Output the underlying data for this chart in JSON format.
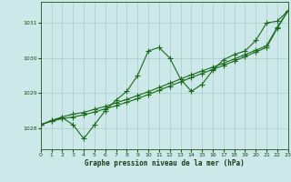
{
  "xlabel": "Graphe pression niveau de la mer (hPa)",
  "bg_color": "#cce8e8",
  "line_color": "#1a6b1a",
  "grid_color": "#aacccc",
  "xlim": [
    0,
    23
  ],
  "ylim": [
    1027.4,
    1031.6
  ],
  "yticks": [
    1028,
    1029,
    1030,
    1031
  ],
  "xticks": [
    0,
    1,
    2,
    3,
    4,
    5,
    6,
    7,
    8,
    9,
    10,
    11,
    12,
    13,
    14,
    15,
    16,
    17,
    18,
    19,
    20,
    21,
    22,
    23
  ],
  "x": [
    0,
    1,
    2,
    3,
    4,
    5,
    6,
    7,
    8,
    9,
    10,
    11,
    12,
    13,
    14,
    15,
    16,
    17,
    18,
    19,
    20,
    21,
    22,
    23
  ],
  "line1": [
    1028.1,
    1028.2,
    1028.3,
    1028.1,
    1027.7,
    1028.1,
    1028.5,
    1028.8,
    1029.05,
    1029.5,
    1030.2,
    1030.3,
    1030.0,
    1029.4,
    1029.05,
    1029.25,
    1029.65,
    1029.95,
    1030.1,
    1030.2,
    1030.5,
    1031.0,
    1031.05,
    1031.35
  ],
  "line2": [
    1028.1,
    1028.2,
    1028.27,
    1028.32,
    1028.38,
    1028.46,
    1028.55,
    1028.64,
    1028.74,
    1028.84,
    1028.96,
    1029.08,
    1029.2,
    1029.32,
    1029.44,
    1029.56,
    1029.67,
    1029.79,
    1029.91,
    1030.04,
    1030.17,
    1030.3,
    1030.85,
    1031.35
  ],
  "line3": [
    1028.1,
    1028.22,
    1028.32,
    1028.4,
    1028.45,
    1028.54,
    1028.62,
    1028.72,
    1028.82,
    1028.93,
    1029.04,
    1029.16,
    1029.28,
    1029.4,
    1029.52,
    1029.63,
    1029.74,
    1029.85,
    1029.97,
    1030.1,
    1030.22,
    1030.35,
    1030.88,
    1031.35
  ]
}
